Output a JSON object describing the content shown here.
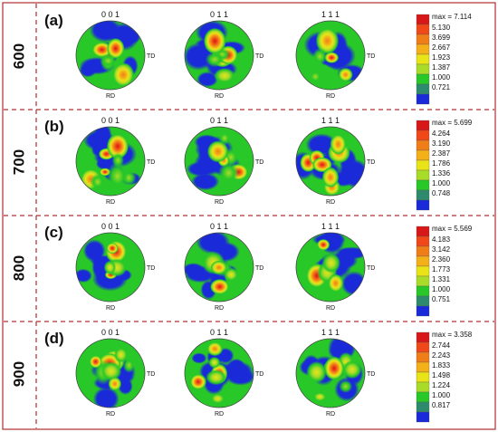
{
  "rows": [
    {
      "label": "(a)",
      "temperature": "600",
      "poles": [
        "0 0 1",
        "0 1 1",
        "1 1 1"
      ],
      "legend": {
        "max": "max = 7.114",
        "levels": [
          "5.130",
          "3.699",
          "2.667",
          "1.923",
          "1.387",
          "1.000",
          "0.721"
        ]
      }
    },
    {
      "label": "(b)",
      "temperature": "700",
      "poles": [
        "0 0 1",
        "0 1 1",
        "1 1 1"
      ],
      "legend": {
        "max": "max = 5.699",
        "levels": [
          "4.264",
          "3.190",
          "2.387",
          "1.786",
          "1.336",
          "1.000",
          "0.748"
        ]
      }
    },
    {
      "label": "(c)",
      "temperature": "800",
      "poles": [
        "0 0 1",
        "0 1 1",
        "1 1 1"
      ],
      "legend": {
        "max": "max = 5.569",
        "levels": [
          "4.183",
          "3.142",
          "2.360",
          "1.773",
          "1.331",
          "1.000",
          "0.751"
        ]
      }
    },
    {
      "label": "(d)",
      "temperature": "900",
      "poles": [
        "0 0 1",
        "0 1 1",
        "1 1 1"
      ],
      "legend": {
        "max": "max = 3.358",
        "levels": [
          "2.744",
          "2.243",
          "1.833",
          "1.498",
          "1.224",
          "1.000",
          "0.817"
        ]
      }
    }
  ],
  "axis_td": "TD",
  "axis_rd": "RD",
  "colors": {
    "frame": "#b03030",
    "scale": [
      "#d81818",
      "#f04818",
      "#f07e18",
      "#f4b018",
      "#e8e418",
      "#a8dc28",
      "#28c828",
      "#2e8a6c",
      "#1a2ad8"
    ]
  }
}
